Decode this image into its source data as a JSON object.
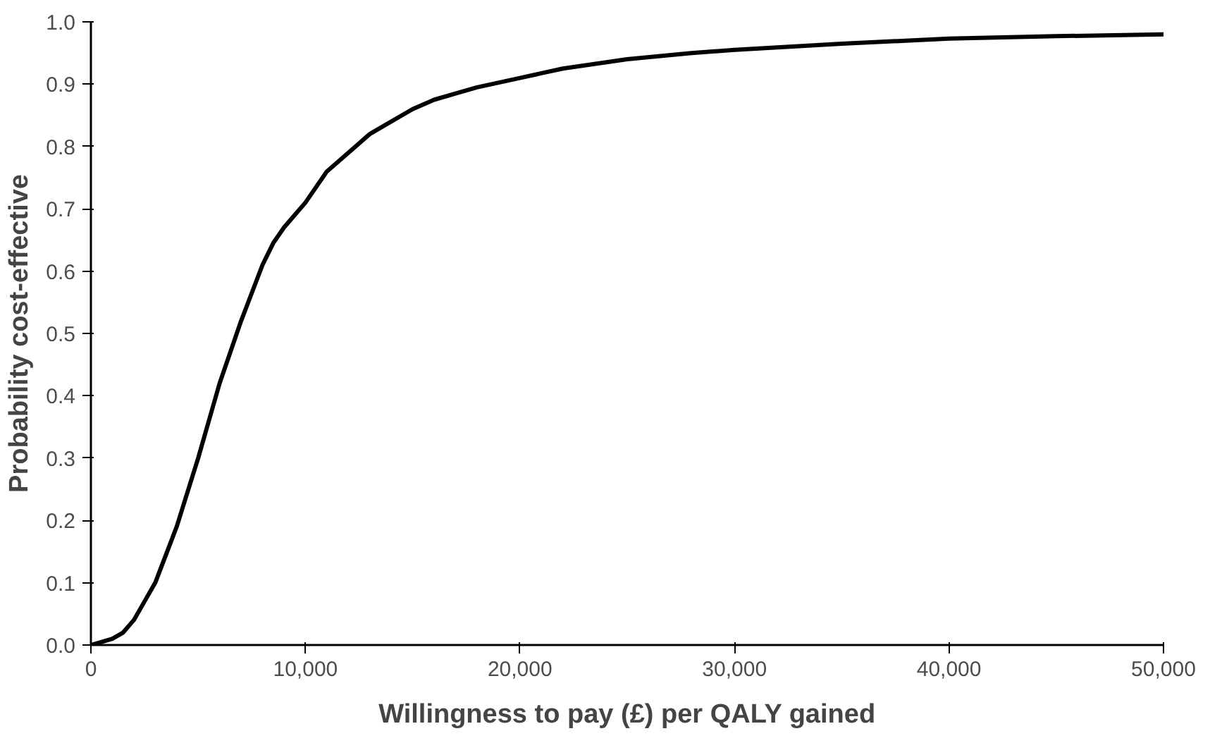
{
  "chart_data": {
    "type": "line",
    "xlabel": "Willingness to pay (£) per QALY gained",
    "ylabel": "Probability cost-effective",
    "x": [
      0,
      500,
      1000,
      1500,
      2000,
      2500,
      3000,
      3500,
      4000,
      4500,
      5000,
      5500,
      6000,
      6500,
      7000,
      7500,
      8000,
      8500,
      9000,
      9500,
      10000,
      11000,
      12000,
      13000,
      14000,
      15000,
      16000,
      17000,
      18000,
      20000,
      22000,
      25000,
      28000,
      30000,
      35000,
      40000,
      45000,
      50000
    ],
    "series": [
      {
        "color": "#000000",
        "values": [
          0.0,
          0.005,
          0.01,
          0.02,
          0.04,
          0.07,
          0.1,
          0.145,
          0.19,
          0.245,
          0.3,
          0.36,
          0.42,
          0.47,
          0.52,
          0.565,
          0.61,
          0.645,
          0.67,
          0.69,
          0.71,
          0.76,
          0.79,
          0.82,
          0.84,
          0.86,
          0.875,
          0.885,
          0.895,
          0.91,
          0.925,
          0.94,
          0.95,
          0.955,
          0.965,
          0.973,
          0.977,
          0.98
        ]
      }
    ],
    "xlim": [
      0,
      50000
    ],
    "ylim": [
      0,
      1.0
    ],
    "xticks": [
      0,
      {
        "value": 10000,
        "label": "10,000"
      },
      {
        "value": 20000,
        "label": "20,000"
      },
      {
        "value": 30000,
        "label": "30,000"
      },
      {
        "value": 40000,
        "label": "40,000"
      },
      {
        "value": 50000,
        "label": "50,000"
      }
    ],
    "yticks": [
      {
        "value": 0,
        "label": "0.0"
      },
      0.1,
      0.2,
      0.3,
      0.4,
      0.5,
      0.6,
      0.7,
      0.8,
      0.9,
      {
        "value": 1,
        "label": "1.0"
      }
    ],
    "grid": false,
    "line_style": "solid"
  }
}
